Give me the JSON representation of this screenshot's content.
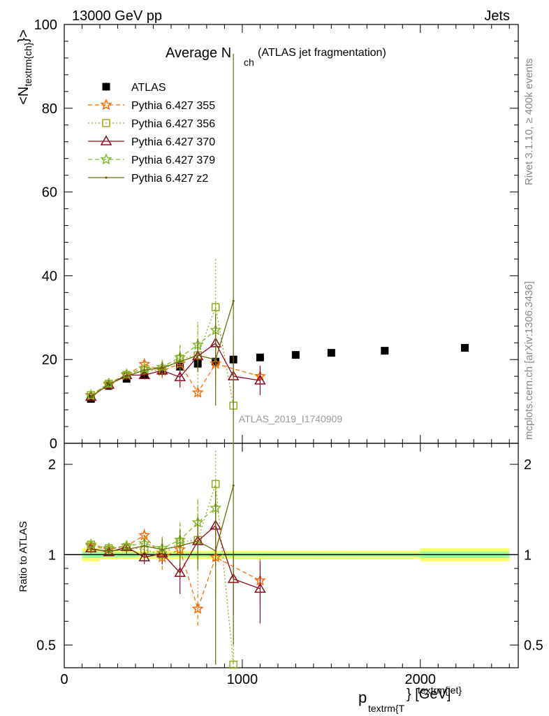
{
  "header": {
    "left": "13000 GeV pp",
    "right": "Jets",
    "title_main": "Average N",
    "title_sub": "ch",
    "title_tail": "(ATLAS jet fragmentation)",
    "side_top": "Rivet 3.1.10, ≥ 400k events",
    "side_bottom": "mcplots.cern.ch [arXiv:1306.3436]",
    "watermark": "ATLAS_2019_I1740909"
  },
  "axes": {
    "ylabel_main": "<N",
    "ylabel_main_sub": "textrm{ch}",
    "ylabel_main_tail": "}>",
    "ylabel_ratio": "Ratio to ATLAS",
    "xlabel_p": "p",
    "xlabel_sub": "textrm{T",
    "xlabel_sup": "textrm{jet}",
    "xlabel_tail": "} [GeV]",
    "x_ticks": [
      "0",
      "1000",
      "2000"
    ],
    "y_ticks_main": [
      "0",
      "20",
      "40",
      "60",
      "80",
      "100"
    ],
    "y_ticks_ratio": [
      "0.5",
      "1",
      "2"
    ]
  },
  "chart_data": [
    {
      "type": "scatter",
      "panel": "main",
      "xlim": [
        0,
        2550
      ],
      "ylim": [
        0,
        100
      ],
      "log_y": false,
      "series": [
        {
          "name": "ATLAS",
          "style": "square",
          "color": "#000000",
          "x": [
            150,
            250,
            350,
            450,
            550,
            650,
            750,
            850,
            950,
            1100,
            1300,
            1500,
            1800,
            2250
          ],
          "y": [
            10.6,
            13.7,
            15.4,
            16.3,
            17.3,
            18.3,
            19.0,
            19.5,
            20.0,
            20.5,
            21.1,
            21.6,
            22.1,
            22.8
          ]
        },
        {
          "name": "Pythia 6.427 355",
          "style": "star-dashed",
          "color": "#ff6a00",
          "x": [
            150,
            250,
            350,
            450,
            550,
            650,
            750,
            850,
            1100
          ],
          "y": [
            11.4,
            14.0,
            16.3,
            18.9,
            17.3,
            19.0,
            12.1,
            19.0,
            16.0
          ],
          "err": [
            0.4,
            0.5,
            0.8,
            1.2,
            1.8,
            2.5,
            1.5,
            5.0,
            2.5
          ]
        },
        {
          "name": "Pythia 6.427 356",
          "style": "open-square-dotted",
          "color": "#9aa620",
          "x": [
            150,
            250,
            350,
            450,
            550,
            650,
            750,
            850,
            950
          ],
          "y": [
            11.5,
            14.2,
            16.3,
            17.4,
            17.4,
            20.2,
            21.0,
            32.5,
            9.0
          ],
          "err": [
            0.4,
            0.5,
            0.8,
            1.0,
            1.8,
            3.0,
            8.0,
            11.5,
            16.0
          ]
        },
        {
          "name": "Pythia 6.427 370",
          "style": "open-triangle-solid",
          "color": "#8c0a1e",
          "x": [
            150,
            250,
            350,
            450,
            550,
            650,
            750,
            850,
            950,
            1100
          ],
          "y": [
            11.1,
            14.0,
            16.3,
            16.3,
            17.4,
            15.8,
            20.8,
            23.9,
            16.0,
            15.0
          ],
          "err": [
            0.4,
            0.5,
            0.8,
            1.0,
            1.5,
            2.5,
            3.0,
            4.0,
            5.0,
            3.5
          ]
        },
        {
          "name": "Pythia 6.427 379",
          "style": "star-dashed",
          "color": "#7fbb2a",
          "x": [
            150,
            250,
            350,
            450,
            550,
            650,
            750,
            850
          ],
          "y": [
            11.5,
            14.3,
            16.5,
            17.8,
            18.2,
            20.5,
            23.5,
            27.0
          ],
          "err": [
            0.4,
            0.5,
            0.8,
            1.2,
            1.8,
            3.0,
            5.0,
            7.0
          ]
        },
        {
          "name": "Pythia 6.427 z2",
          "style": "dot-solid",
          "color": "#6b6b0a",
          "x": [
            150,
            250,
            350,
            450,
            550,
            650,
            750,
            850,
            950
          ],
          "y": [
            11.0,
            14.1,
            16.0,
            17.5,
            18.0,
            19.5,
            21.0,
            20.0,
            34.0
          ],
          "err": [
            0.4,
            0.5,
            0.8,
            1.0,
            1.5,
            2.5,
            4.0,
            11.0,
            59.0
          ]
        }
      ]
    },
    {
      "type": "scatter",
      "panel": "ratio",
      "xlim": [
        0,
        2550
      ],
      "ylim": [
        0.42,
        2.35
      ],
      "log_y": true,
      "band_ranges": [
        [
          100,
          200
        ],
        [
          200,
          300
        ],
        [
          300,
          400
        ],
        [
          400,
          500
        ],
        [
          500,
          600
        ],
        [
          600,
          700
        ],
        [
          700,
          800
        ],
        [
          800,
          900
        ],
        [
          900,
          1000
        ],
        [
          1000,
          1200
        ],
        [
          1200,
          1400
        ],
        [
          1400,
          1600
        ],
        [
          1600,
          2000
        ],
        [
          2000,
          2500
        ]
      ],
      "band_inner": [
        0.025,
        0.02,
        0.018,
        0.016,
        0.016,
        0.016,
        0.016,
        0.016,
        0.016,
        0.016,
        0.016,
        0.016,
        0.016,
        0.025
      ],
      "band_outer": [
        0.05,
        0.035,
        0.03,
        0.03,
        0.03,
        0.03,
        0.03,
        0.03,
        0.03,
        0.03,
        0.03,
        0.03,
        0.03,
        0.05
      ],
      "series": [
        {
          "name": "Pythia 6.427 355",
          "style": "star-dashed",
          "color": "#ff6a00",
          "x": [
            150,
            250,
            350,
            450,
            550,
            650,
            750,
            850,
            1100
          ],
          "y": [
            1.07,
            1.04,
            1.07,
            1.16,
            0.98,
            1.04,
            0.66,
            0.98,
            0.82
          ],
          "err": [
            0.03,
            0.03,
            0.04,
            0.06,
            0.1,
            0.13,
            0.08,
            0.26,
            0.15
          ]
        },
        {
          "name": "Pythia 6.427 356",
          "style": "open-square-dotted",
          "color": "#9aa620",
          "x": [
            150,
            250,
            350,
            450,
            550,
            650,
            750,
            850,
            950
          ],
          "y": [
            1.08,
            1.05,
            1.06,
            1.04,
            1.0,
            1.1,
            1.12,
            1.72,
            0.43
          ],
          "err": [
            0.03,
            0.03,
            0.04,
            0.06,
            0.1,
            0.16,
            0.4,
            0.5,
            0.4
          ]
        },
        {
          "name": "Pythia 6.427 370",
          "style": "open-triangle-solid",
          "color": "#8c0a1e",
          "x": [
            150,
            250,
            350,
            450,
            550,
            650,
            750,
            850,
            950,
            1100
          ],
          "y": [
            1.05,
            1.02,
            1.06,
            0.98,
            1.01,
            0.87,
            1.11,
            1.25,
            0.83,
            0.77
          ],
          "err": [
            0.03,
            0.03,
            0.04,
            0.05,
            0.08,
            0.13,
            0.15,
            0.22,
            0.2,
            0.18
          ]
        },
        {
          "name": "Pythia 6.427 379",
          "style": "star-dashed",
          "color": "#7fbb2a",
          "x": [
            150,
            250,
            350,
            450,
            550,
            650,
            750,
            850
          ],
          "y": [
            1.08,
            1.05,
            1.07,
            1.09,
            1.05,
            1.12,
            1.28,
            1.43
          ],
          "err": [
            0.03,
            0.03,
            0.04,
            0.06,
            0.1,
            0.16,
            0.25,
            0.35
          ]
        },
        {
          "name": "Pythia 6.427 z2",
          "style": "dot-solid",
          "color": "#6b6b0a",
          "x": [
            150,
            250,
            350,
            450,
            550,
            650,
            750,
            850,
            950
          ],
          "y": [
            1.04,
            1.03,
            1.04,
            1.07,
            1.04,
            1.07,
            1.11,
            1.03,
            1.7
          ],
          "err": [
            0.03,
            0.03,
            0.04,
            0.06,
            0.09,
            0.14,
            0.22,
            0.6,
            1.2
          ]
        }
      ]
    }
  ]
}
